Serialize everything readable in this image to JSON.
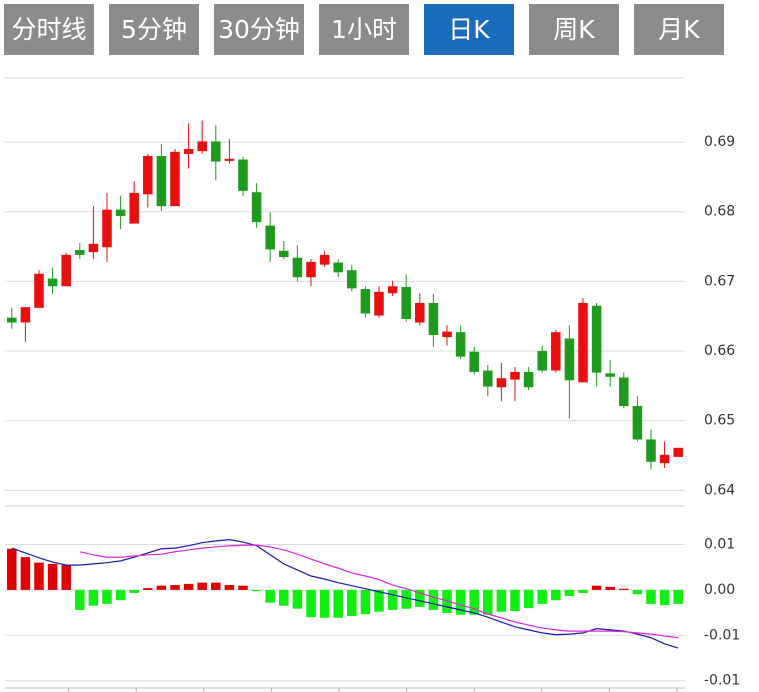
{
  "tabs": [
    "分时线",
    "5分钟",
    "30分钟",
    "1小时",
    "日K",
    "周K",
    "月K"
  ],
  "active_tab": 4,
  "chart_data": [
    {
      "type": "candlestick",
      "up_color": "#e8100f",
      "down_color": "#1e9a1e",
      "ylim": [
        0.6389,
        0.6992
      ],
      "yticks": [
        0.64,
        0.65,
        0.66,
        0.67,
        0.68,
        0.69
      ],
      "grid": true,
      "open": [
        0.6648,
        0.6641,
        0.6662,
        0.6704,
        0.6693,
        0.6745,
        0.6742,
        0.6749,
        0.6803,
        0.6783,
        0.6825,
        0.688,
        0.6808,
        0.6883,
        0.6887,
        0.6901,
        0.6873,
        0.6875,
        0.6828,
        0.678,
        0.6744,
        0.6734,
        0.6706,
        0.6724,
        0.6727,
        0.6716,
        0.6689,
        0.6651,
        0.6683,
        0.6692,
        0.6641,
        0.6669,
        0.662,
        0.6627,
        0.6599,
        0.6572,
        0.6548,
        0.6559,
        0.657,
        0.66,
        0.6572,
        0.6618,
        0.6555,
        0.6665,
        0.6568,
        0.6562,
        0.6521,
        0.6473,
        0.6439,
        0.6448
      ],
      "high": [
        0.6662,
        0.6663,
        0.6716,
        0.672,
        0.6741,
        0.6755,
        0.6808,
        0.6827,
        0.6823,
        0.6844,
        0.6883,
        0.6897,
        0.689,
        0.6927,
        0.6931,
        0.6924,
        0.6904,
        0.6879,
        0.6841,
        0.6799,
        0.6758,
        0.6752,
        0.6732,
        0.6744,
        0.6732,
        0.6724,
        0.6693,
        0.6693,
        0.6701,
        0.671,
        0.6683,
        0.6682,
        0.6637,
        0.6637,
        0.6606,
        0.658,
        0.6583,
        0.6577,
        0.6577,
        0.6608,
        0.663,
        0.6637,
        0.6676,
        0.6669,
        0.6587,
        0.6569,
        0.6535,
        0.6487,
        0.647,
        0.6461
      ],
      "low": [
        0.6632,
        0.6613,
        0.6662,
        0.6682,
        0.6693,
        0.6732,
        0.6732,
        0.6728,
        0.6775,
        0.6783,
        0.6806,
        0.6801,
        0.6808,
        0.6862,
        0.6883,
        0.6845,
        0.6869,
        0.6823,
        0.6777,
        0.6728,
        0.6732,
        0.67,
        0.6693,
        0.6721,
        0.6706,
        0.6686,
        0.6648,
        0.6648,
        0.6679,
        0.6642,
        0.6637,
        0.6606,
        0.6608,
        0.6589,
        0.6566,
        0.6535,
        0.6528,
        0.6528,
        0.6544,
        0.6569,
        0.6569,
        0.6503,
        0.6555,
        0.6549,
        0.6549,
        0.6518,
        0.647,
        0.643,
        0.6432,
        0.6448
      ],
      "close": [
        0.6641,
        0.6663,
        0.6711,
        0.6693,
        0.6738,
        0.6738,
        0.6754,
        0.6803,
        0.6794,
        0.6827,
        0.688,
        0.6808,
        0.6886,
        0.689,
        0.6901,
        0.6872,
        0.6876,
        0.683,
        0.6785,
        0.6746,
        0.6735,
        0.6706,
        0.6728,
        0.6738,
        0.6713,
        0.669,
        0.6654,
        0.6685,
        0.6693,
        0.6646,
        0.6669,
        0.6623,
        0.6628,
        0.6592,
        0.657,
        0.6549,
        0.6561,
        0.657,
        0.6548,
        0.6572,
        0.6627,
        0.6558,
        0.6669,
        0.6569,
        0.6563,
        0.6521,
        0.6473,
        0.6441,
        0.6451,
        0.6461
      ]
    },
    {
      "type": "macd",
      "ylim": [
        -0.0162,
        0.0132
      ],
      "yticks": [
        {
          "value": 0.0075,
          "label": "0.01"
        },
        {
          "value": 0,
          "label": "0.00"
        },
        {
          "value": -0.0075,
          "label": "-0.01"
        },
        {
          "value": -0.015,
          "label": "-0.01"
        }
      ],
      "grid": true,
      "series": [
        {
          "type": "bar",
          "up_color": "#e00000",
          "down_color": "#11ee11",
          "values": [
            0.0068,
            0.0054,
            0.0045,
            0.0043,
            0.0041,
            -0.0033,
            -0.0026,
            -0.0023,
            -0.0017,
            -0.0005,
            0.0003,
            0.0007,
            0.0008,
            0.001,
            0.0012,
            0.0012,
            0.0008,
            0.0007,
            -0.0002,
            -0.0021,
            -0.0026,
            -0.0031,
            -0.0045,
            -0.0046,
            -0.0046,
            -0.0043,
            -0.004,
            -0.0036,
            -0.0033,
            -0.0031,
            -0.0028,
            -0.0033,
            -0.0038,
            -0.0041,
            -0.0041,
            -0.0041,
            -0.0036,
            -0.0035,
            -0.003,
            -0.0023,
            -0.0017,
            -0.001,
            -0.0005,
            0.0007,
            0.0005,
            0.0002,
            -0.0007,
            -0.0023,
            -0.0025,
            -0.0023
          ]
        },
        {
          "type": "line",
          "color": "#1a1aa8",
          "values": [
            0.0069,
            0.0061,
            0.0053,
            0.0046,
            0.0041,
            0.0041,
            0.0043,
            0.0045,
            0.0048,
            0.0054,
            0.0061,
            0.0068,
            0.0069,
            0.0073,
            0.0078,
            0.0081,
            0.0083,
            0.0079,
            0.0073,
            0.0058,
            0.0043,
            0.0033,
            0.0023,
            0.0018,
            0.0012,
            0.0007,
            0.0002,
            -0.0003,
            -0.0008,
            -0.0013,
            -0.0018,
            -0.0023,
            -0.0028,
            -0.0033,
            -0.0038,
            -0.0045,
            -0.0053,
            -0.0061,
            -0.0066,
            -0.0071,
            -0.0074,
            -0.0073,
            -0.0071,
            -0.0064,
            -0.0066,
            -0.0068,
            -0.0073,
            -0.0079,
            -0.0089,
            -0.0096
          ]
        },
        {
          "type": "line",
          "color": "#e024e0",
          "values": [
            null,
            null,
            null,
            null,
            null,
            0.0063,
            0.0058,
            0.0054,
            0.0054,
            0.0056,
            0.0058,
            0.0059,
            0.0063,
            0.0066,
            0.0069,
            0.0071,
            0.0073,
            0.0074,
            0.0074,
            0.0071,
            0.0066,
            0.0059,
            0.0051,
            0.0043,
            0.0036,
            0.0028,
            0.0023,
            0.0017,
            0.0008,
            0.0002,
            -0.0005,
            -0.0012,
            -0.0018,
            -0.0025,
            -0.0031,
            -0.004,
            -0.0046,
            -0.0053,
            -0.0058,
            -0.0063,
            -0.0066,
            -0.0068,
            -0.0068,
            -0.0068,
            -0.0068,
            -0.0069,
            -0.0071,
            -0.0073,
            -0.0076,
            -0.0079
          ]
        }
      ]
    }
  ]
}
